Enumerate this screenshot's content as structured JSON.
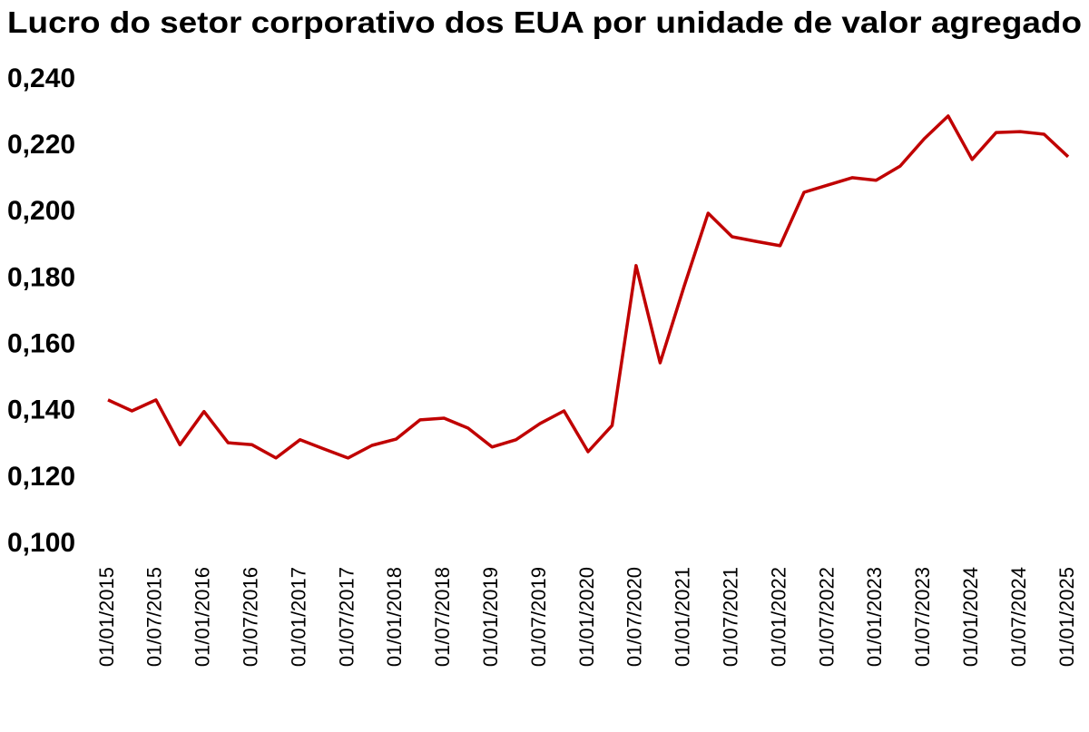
{
  "chart_data": {
    "type": "line",
    "title": "Lucro do setor corporativo dos EUA por unidade de valor agregado",
    "categories": [
      "01/01/2015",
      null,
      "01/07/2015",
      null,
      "01/01/2016",
      null,
      "01/07/2016",
      null,
      "01/01/2017",
      null,
      "01/07/2017",
      null,
      "01/01/2018",
      null,
      "01/07/2018",
      null,
      "01/01/2019",
      null,
      "01/07/2019",
      null,
      "01/01/2020",
      null,
      "01/07/2020",
      null,
      "01/01/2021",
      null,
      "01/07/2021",
      null,
      "01/01/2022",
      null,
      "01/07/2022",
      null,
      "01/01/2023",
      null,
      "01/07/2023",
      null,
      "01/01/2024",
      null,
      "01/07/2024",
      null,
      "01/01/2025"
    ],
    "values": [
      0.1435,
      0.1402,
      0.1435,
      0.13,
      0.14,
      0.1306,
      0.13,
      0.126,
      0.1315,
      0.1287,
      0.126,
      0.1298,
      0.1317,
      0.1375,
      0.138,
      0.135,
      0.1293,
      0.1315,
      0.1364,
      0.1402,
      0.1279,
      0.1358,
      0.184,
      0.1547,
      0.1777,
      0.1998,
      0.1927,
      0.1913,
      0.19,
      0.2061,
      0.2083,
      0.2105,
      0.2097,
      0.214,
      0.2222,
      0.2291,
      0.216,
      0.2241,
      0.2244,
      0.2236,
      0.2168
    ],
    "color": "#c00000",
    "ylim": [
      0.1,
      0.24
    ],
    "yticks": [
      {
        "value": 0.1,
        "label": "0,100"
      },
      {
        "value": 0.12,
        "label": "0,120"
      },
      {
        "value": 0.14,
        "label": "0,140"
      },
      {
        "value": 0.16,
        "label": "0,160"
      },
      {
        "value": 0.18,
        "label": "0,180"
      },
      {
        "value": 0.2,
        "label": "0,200"
      },
      {
        "value": 0.22,
        "label": "0,220"
      },
      {
        "value": 0.24,
        "label": "0,240"
      }
    ],
    "grid": false
  }
}
